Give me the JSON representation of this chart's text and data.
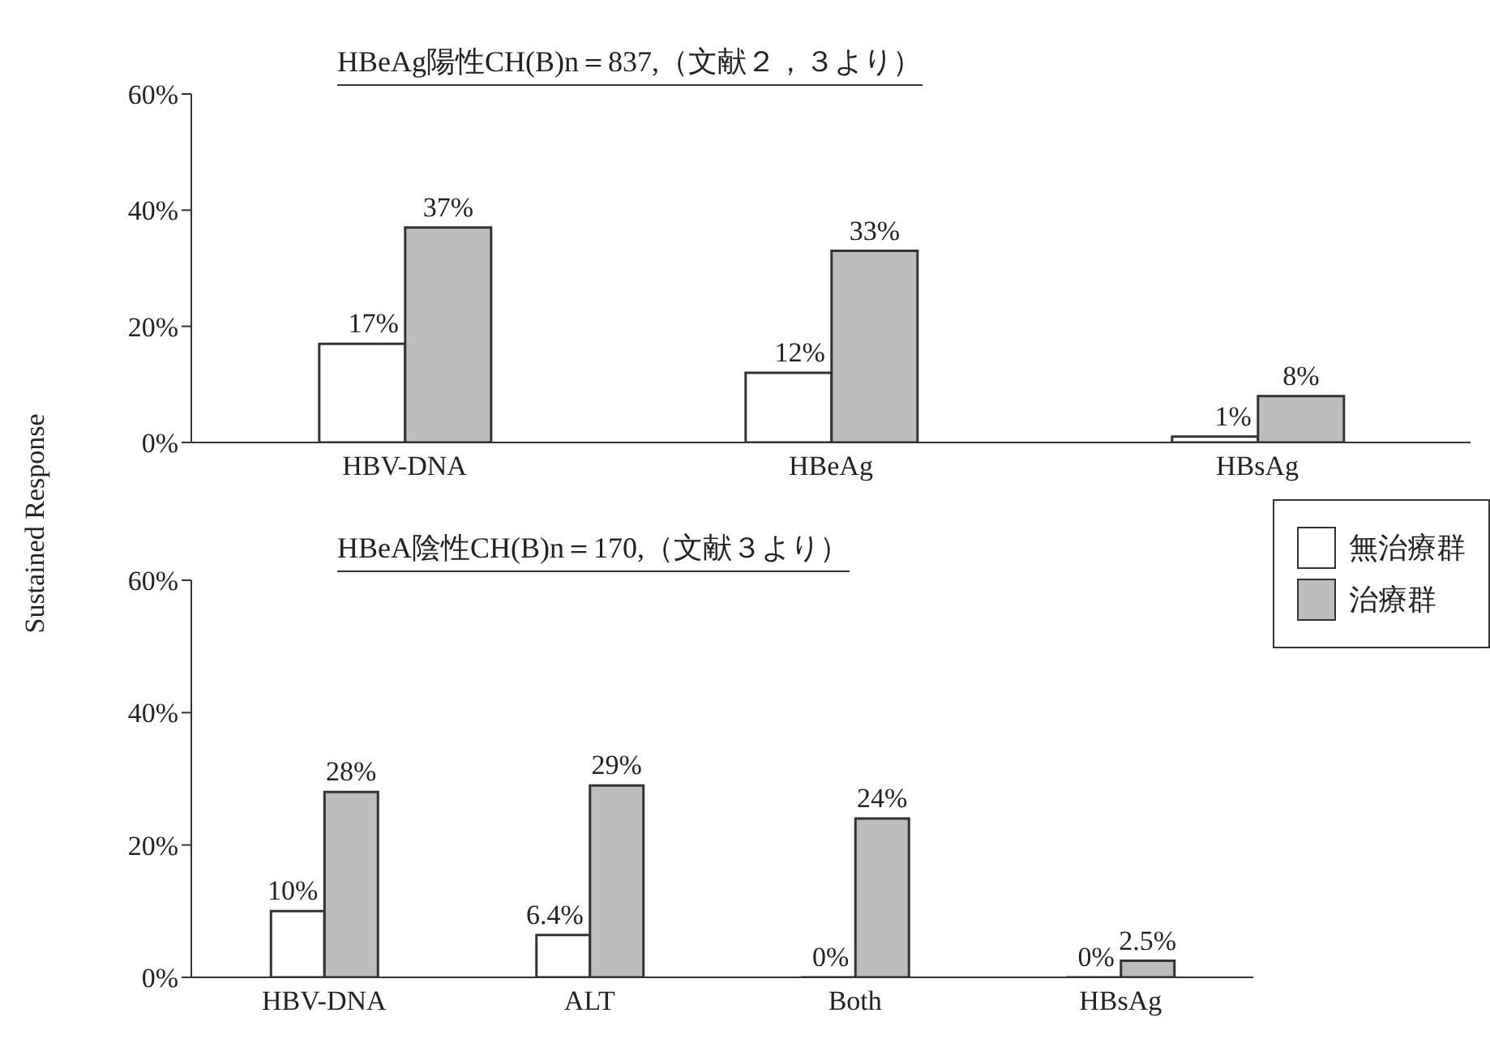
{
  "chart_data": [
    {
      "type": "bar",
      "title": "HBeAg陽性CH(B)n＝837,（文献２，３より）",
      "ylabel": "Sustained Response",
      "categories": [
        "HBV-DNA",
        "HBeAg",
        "HBsAg"
      ],
      "series": [
        {
          "color": "#ffffff",
          "values": [
            17,
            12,
            1
          ],
          "value_labels": [
            "17%",
            "12%",
            "1%"
          ]
        },
        {
          "color": "#bdbdbd",
          "values": [
            37,
            33,
            8
          ],
          "value_labels": [
            "37%",
            "33%",
            "8%"
          ]
        }
      ],
      "ylim": [
        0,
        60
      ],
      "yticks": [
        {
          "value": 0,
          "label": "0%"
        },
        {
          "value": 20,
          "label": "20%"
        },
        {
          "value": 40,
          "label": "40%"
        },
        {
          "value": 60,
          "label": "60%"
        }
      ],
      "grid": false,
      "legend": false
    },
    {
      "type": "bar",
      "title": "HBeA陰性CH(B)n＝170,（文献３より）",
      "categories": [
        "HBV-DNA",
        "ALT",
        "Both",
        "HBsAg"
      ],
      "series": [
        {
          "name": "無治療群",
          "color": "#ffffff",
          "values": [
            10,
            6.4,
            0,
            0
          ],
          "value_labels": [
            "10%",
            "6.4%",
            "0%",
            "0%"
          ]
        },
        {
          "name": "治療群",
          "color": "#bdbdbd",
          "values": [
            28,
            29,
            24,
            2.5
          ],
          "value_labels": [
            "28%",
            "29%",
            "24%",
            "2.5%"
          ]
        }
      ],
      "ylim": [
        0,
        60
      ],
      "yticks": [
        {
          "value": 0,
          "label": "0%"
        },
        {
          "value": 20,
          "label": "20%"
        },
        {
          "value": 40,
          "label": "40%"
        },
        {
          "value": 60,
          "label": "60%"
        }
      ],
      "grid": false,
      "legend": "top right"
    }
  ]
}
